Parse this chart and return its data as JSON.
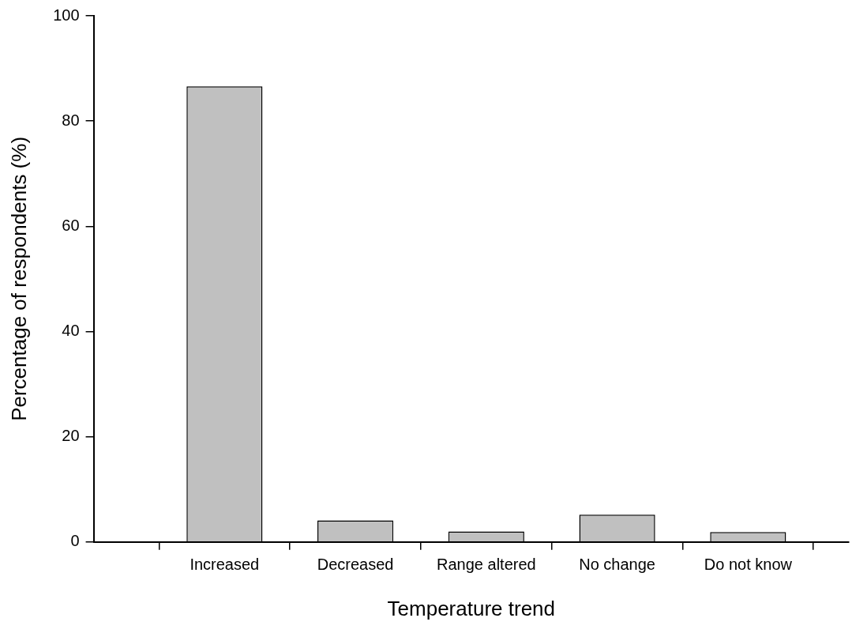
{
  "chart_data": {
    "type": "bar",
    "xlabel": "Temperature trend",
    "ylabel": "Percentage of respondents (%)",
    "categories": [
      "Increased",
      "Decreased",
      "Range altered",
      "No change",
      "Do not know"
    ],
    "values": [
      86.6,
      4.1,
      2.0,
      5.2,
      1.9
    ],
    "color": "#c0c0c0",
    "ylim": [
      0,
      100
    ],
    "yticks": [
      0,
      20,
      40,
      60,
      80,
      100
    ],
    "grid": false,
    "legend": false
  }
}
